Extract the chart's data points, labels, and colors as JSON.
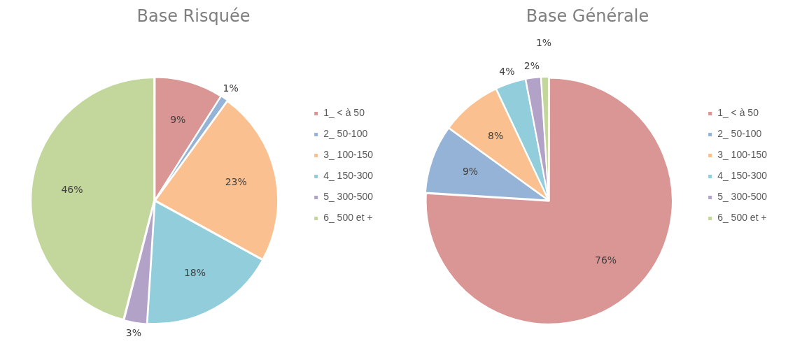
{
  "chart_data": [
    {
      "type": "pie",
      "title": "Base Risquée",
      "categories": [
        "1_ < à 50",
        "2_ 50-100",
        "3_ 100-150",
        "4_ 150-300",
        "5_ 300-500",
        "6_ 500 et +"
      ],
      "values": [
        9,
        1,
        23,
        18,
        3,
        46
      ],
      "value_labels": [
        "9%",
        "1%",
        "23%",
        "18%",
        "3%",
        "46%"
      ],
      "colors": [
        "#d99694",
        "#95b3d7",
        "#fac08f",
        "#92cddc",
        "#b3a2c7",
        "#c3d69b"
      ],
      "legend": "right"
    },
    {
      "type": "pie",
      "title": "Base Générale",
      "categories": [
        "1_ < à 50",
        "2_ 50-100",
        "3_ 100-150",
        "4_ 150-300",
        "5_ 300-500",
        "6_ 500 et +"
      ],
      "values": [
        76,
        9,
        8,
        4,
        2,
        1
      ],
      "value_labels": [
        "76%",
        "9%",
        "8%",
        "4%",
        "2%",
        "1%"
      ],
      "colors": [
        "#d99694",
        "#95b3d7",
        "#fac08f",
        "#92cddc",
        "#b3a2c7",
        "#c3d69b"
      ],
      "legend": "right"
    }
  ]
}
